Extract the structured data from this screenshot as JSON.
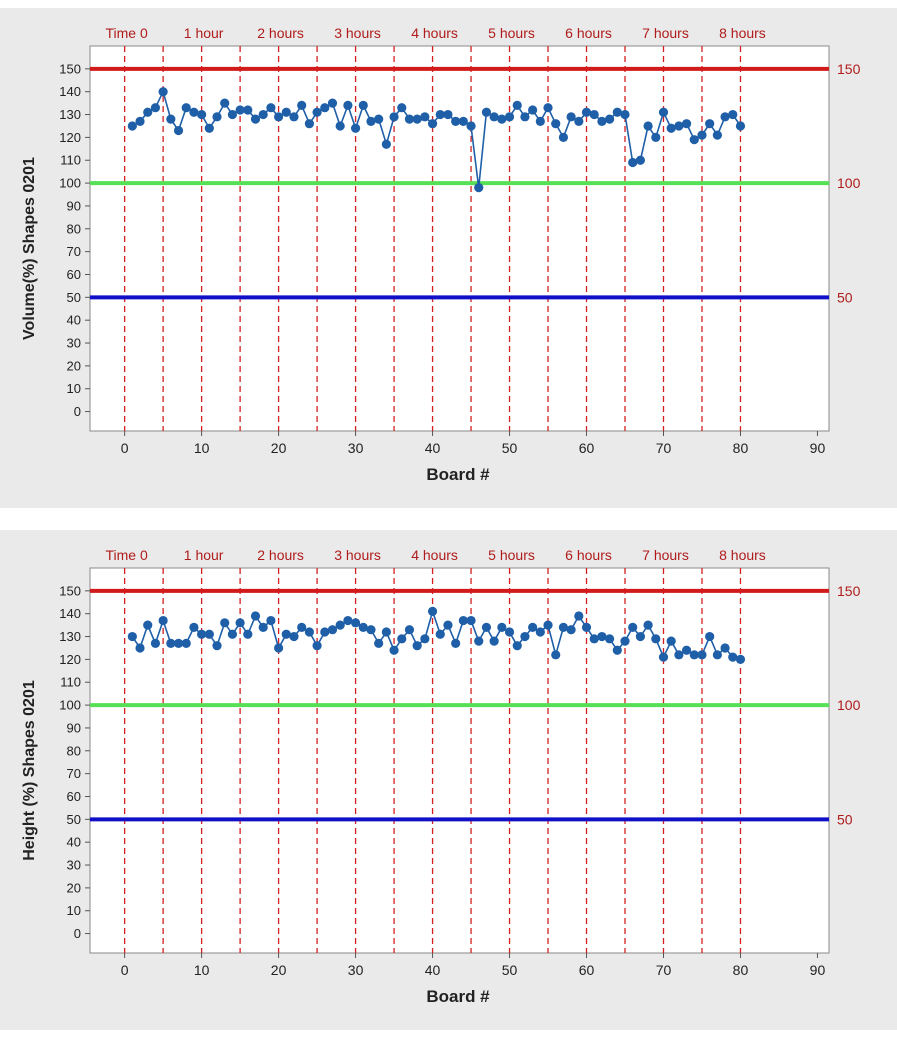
{
  "chart_data": [
    {
      "type": "line",
      "ylabel": "Volume(%) Shapes 0201",
      "xlabel": "Board #",
      "xlim": [
        -4.5,
        91.5
      ],
      "ylim": [
        -8.5,
        160
      ],
      "x_ticks": [
        0,
        10,
        20,
        30,
        40,
        50,
        60,
        70,
        80,
        90
      ],
      "y_ticks": [
        0,
        10,
        20,
        30,
        40,
        50,
        60,
        70,
        80,
        90,
        100,
        110,
        120,
        130,
        140,
        150
      ],
      "reference_lines": [
        {
          "value": 150,
          "label": "150",
          "color": "#d11a1a"
        },
        {
          "value": 100,
          "label": "100",
          "color": "#55e055"
        },
        {
          "value": 50,
          "label": "50",
          "color": "#1010c8"
        }
      ],
      "time_markers": [
        {
          "x": 0,
          "label": "Time 0"
        },
        {
          "x": 10,
          "label": "1 hour"
        },
        {
          "x": 20,
          "label": "2 hours"
        },
        {
          "x": 30,
          "label": "3 hours"
        },
        {
          "x": 40,
          "label": "4 hours"
        },
        {
          "x": 50,
          "label": "5 hours"
        },
        {
          "x": 60,
          "label": "6 hours"
        },
        {
          "x": 70,
          "label": "7 hours"
        },
        {
          "x": 80,
          "label": "8 hours"
        }
      ],
      "vertical_lines_x": [
        0,
        5,
        10,
        15,
        20,
        25,
        30,
        35,
        40,
        45,
        50,
        55,
        60,
        65,
        70,
        75,
        80
      ],
      "grid": false,
      "series": [
        {
          "color": "#1f5fa8",
          "x": [
            1,
            2,
            3,
            4,
            5,
            6,
            7,
            8,
            9,
            10,
            11,
            12,
            13,
            14,
            15,
            16,
            17,
            18,
            19,
            20,
            21,
            22,
            23,
            24,
            25,
            26,
            27,
            28,
            29,
            30,
            31,
            32,
            33,
            34,
            35,
            36,
            37,
            38,
            39,
            40,
            41,
            42,
            43,
            44,
            45,
            46,
            47,
            48,
            49,
            50,
            51,
            52,
            53,
            54,
            55,
            56,
            57,
            58,
            59,
            60,
            61,
            62,
            63,
            64,
            65,
            66,
            67,
            68,
            69,
            70,
            71,
            72,
            73,
            74,
            75,
            76,
            77,
            78,
            79,
            80
          ],
          "values": [
            125,
            127,
            131,
            133,
            140,
            128,
            123,
            133,
            131,
            130,
            124,
            129,
            135,
            130,
            132,
            132,
            128,
            130,
            133,
            129,
            131,
            129,
            134,
            126,
            131,
            133,
            135,
            125,
            134,
            124,
            134,
            127,
            128,
            117,
            129,
            133,
            128,
            128,
            129,
            126,
            130,
            130,
            127,
            127,
            125,
            98,
            131,
            129,
            128,
            129,
            134,
            129,
            132,
            127,
            133,
            126,
            120,
            129,
            127,
            131,
            130,
            127,
            128,
            131,
            130,
            109,
            110,
            125,
            120,
            131,
            124,
            125,
            126,
            119,
            121,
            126,
            121,
            129,
            130,
            125
          ]
        }
      ]
    },
    {
      "type": "line",
      "ylabel": "Height (%) Shapes 0201",
      "xlabel": "Board #",
      "xlim": [
        -4.5,
        91.5
      ],
      "ylim": [
        -8.5,
        160
      ],
      "x_ticks": [
        0,
        10,
        20,
        30,
        40,
        50,
        60,
        70,
        80,
        90
      ],
      "y_ticks": [
        0,
        10,
        20,
        30,
        40,
        50,
        60,
        70,
        80,
        90,
        100,
        110,
        120,
        130,
        140,
        150
      ],
      "reference_lines": [
        {
          "value": 150,
          "label": "150",
          "color": "#d11a1a"
        },
        {
          "value": 100,
          "label": "100",
          "color": "#55e055"
        },
        {
          "value": 50,
          "label": "50",
          "color": "#1010c8"
        }
      ],
      "time_markers": [
        {
          "x": 0,
          "label": "Time 0"
        },
        {
          "x": 10,
          "label": "1 hour"
        },
        {
          "x": 20,
          "label": "2 hours"
        },
        {
          "x": 30,
          "label": "3 hours"
        },
        {
          "x": 40,
          "label": "4 hours"
        },
        {
          "x": 50,
          "label": "5 hours"
        },
        {
          "x": 60,
          "label": "6 hours"
        },
        {
          "x": 70,
          "label": "7 hours"
        },
        {
          "x": 80,
          "label": "8 hours"
        }
      ],
      "vertical_lines_x": [
        0,
        5,
        10,
        15,
        20,
        25,
        30,
        35,
        40,
        45,
        50,
        55,
        60,
        65,
        70,
        75,
        80
      ],
      "grid": false,
      "series": [
        {
          "color": "#1f5fa8",
          "x": [
            1,
            2,
            3,
            4,
            5,
            6,
            7,
            8,
            9,
            10,
            11,
            12,
            13,
            14,
            15,
            16,
            17,
            18,
            19,
            20,
            21,
            22,
            23,
            24,
            25,
            26,
            27,
            28,
            29,
            30,
            31,
            32,
            33,
            34,
            35,
            36,
            37,
            38,
            39,
            40,
            41,
            42,
            43,
            44,
            45,
            46,
            47,
            48,
            49,
            50,
            51,
            52,
            53,
            54,
            55,
            56,
            57,
            58,
            59,
            60,
            61,
            62,
            63,
            64,
            65,
            66,
            67,
            68,
            69,
            70,
            71,
            72,
            73,
            74,
            75,
            76,
            77,
            78,
            79,
            80
          ],
          "values": [
            130,
            125,
            135,
            127,
            137,
            127,
            127,
            127,
            134,
            131,
            131,
            126,
            136,
            131,
            136,
            131,
            139,
            134,
            137,
            125,
            131,
            130,
            134,
            132,
            126,
            132,
            133,
            135,
            137,
            136,
            134,
            133,
            127,
            132,
            124,
            129,
            133,
            126,
            129,
            141,
            131,
            135,
            127,
            137,
            137,
            128,
            134,
            128,
            134,
            132,
            126,
            130,
            134,
            132,
            135,
            122,
            134,
            133,
            139,
            134,
            129,
            130,
            129,
            124,
            128,
            134,
            130,
            135,
            129,
            121,
            128,
            122,
            124,
            122,
            122,
            130,
            122,
            125,
            121,
            120
          ]
        }
      ]
    }
  ]
}
